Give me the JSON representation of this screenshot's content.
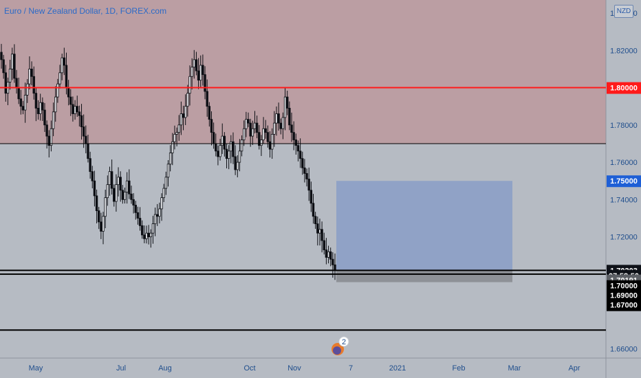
{
  "header": {
    "title": "Euro / New Zealand Dollar, 1D, FOREX.com",
    "currency_button": "NZD"
  },
  "event_marker": {
    "count": "2"
  },
  "colors": {
    "background": "#b6bbc3",
    "upper_zone": "#bb9ea3",
    "resistance_line": "#ff1a1a",
    "target_box": "#8ca0c6",
    "stop_box": "#8a8d92",
    "candle": "#0d0f14",
    "axis_text": "#1e4d8c"
  },
  "chart_data": {
    "type": "candlestick",
    "title": "Euro / New Zealand Dollar, 1D, FOREX.com",
    "x_ticks": [
      "May",
      "Jul",
      "Aug",
      "Oct",
      "Nov",
      "7",
      "2021",
      "Feb",
      "Mar",
      "Apr"
    ],
    "y_ticks": [
      "1.84000",
      "1.82000",
      "1.78000",
      "1.76000",
      "1.74000",
      "1.72000",
      "1.66000"
    ],
    "ylim": [
      1.655,
      1.847
    ],
    "price_tags": [
      {
        "label": "1.80000",
        "value": 1.8,
        "style": "red"
      },
      {
        "label": "1.75000",
        "value": 1.75,
        "style": "blue"
      },
      {
        "label": "1.70203",
        "value": 1.70203,
        "style": "dark"
      },
      {
        "label": "07:58:50",
        "value": 1.6993,
        "style": "dark"
      },
      {
        "label": "1.70191",
        "value": 1.6968,
        "style": "grey"
      },
      {
        "label": "1.70000",
        "value": 1.6938,
        "style": "black"
      },
      {
        "label": "1.69000",
        "value": 1.6887,
        "style": "black"
      },
      {
        "label": "1.67000",
        "value": 1.6835,
        "style": "black"
      }
    ],
    "horizontal_lines": [
      {
        "value": 1.8,
        "color": "red"
      },
      {
        "value": 1.77,
        "color": "black"
      },
      {
        "value": 1.70203,
        "color": "black"
      },
      {
        "value": 1.7,
        "color": "black"
      },
      {
        "value": 1.67,
        "color": "black"
      }
    ],
    "zones": [
      {
        "name": "resistance-zone",
        "from": 1.77,
        "to": 1.847
      },
      {
        "name": "target-zone",
        "from": 1.702,
        "to": 1.75
      },
      {
        "name": "stop-zone",
        "from": 1.6957,
        "to": 1.702
      }
    ],
    "closes": [
      1.815,
      1.808,
      1.797,
      1.803,
      1.81,
      1.818,
      1.805,
      1.8,
      1.794,
      1.79,
      1.788,
      1.796,
      1.802,
      1.81,
      1.806,
      1.797,
      1.789,
      1.786,
      1.792,
      1.788,
      1.78,
      1.774,
      1.769,
      1.778,
      1.787,
      1.795,
      1.802,
      1.808,
      1.816,
      1.812,
      1.8,
      1.795,
      1.791,
      1.786,
      1.79,
      1.787,
      1.785,
      1.779,
      1.774,
      1.77,
      1.762,
      1.755,
      1.75,
      1.742,
      1.734,
      1.728,
      1.723,
      1.731,
      1.741,
      1.748,
      1.755,
      1.746,
      1.739,
      1.748,
      1.752,
      1.745,
      1.74,
      1.744,
      1.75,
      1.743,
      1.74,
      1.737,
      1.733,
      1.73,
      1.726,
      1.721,
      1.719,
      1.722,
      1.72,
      1.722,
      1.727,
      1.732,
      1.731,
      1.735,
      1.741,
      1.746,
      1.752,
      1.759,
      1.765,
      1.771,
      1.775,
      1.776,
      1.78,
      1.786,
      1.784,
      1.79,
      1.797,
      1.806,
      1.811,
      1.815,
      1.809,
      1.804,
      1.812,
      1.807,
      1.798,
      1.79,
      1.783,
      1.776,
      1.77,
      1.766,
      1.763,
      1.769,
      1.774,
      1.767,
      1.762,
      1.766,
      1.771,
      1.763,
      1.756,
      1.76,
      1.766,
      1.772,
      1.778,
      1.783,
      1.781,
      1.774,
      1.778,
      1.781,
      1.776,
      1.769,
      1.772,
      1.778,
      1.776,
      1.771,
      1.767,
      1.775,
      1.781,
      1.786,
      1.781,
      1.778,
      1.784,
      1.795,
      1.789,
      1.78,
      1.776,
      1.772,
      1.769,
      1.766,
      1.762,
      1.757,
      1.754,
      1.751,
      1.745,
      1.738,
      1.731,
      1.727,
      1.722,
      1.724,
      1.718,
      1.713,
      1.709,
      1.712,
      1.708,
      1.705,
      1.702
    ]
  }
}
